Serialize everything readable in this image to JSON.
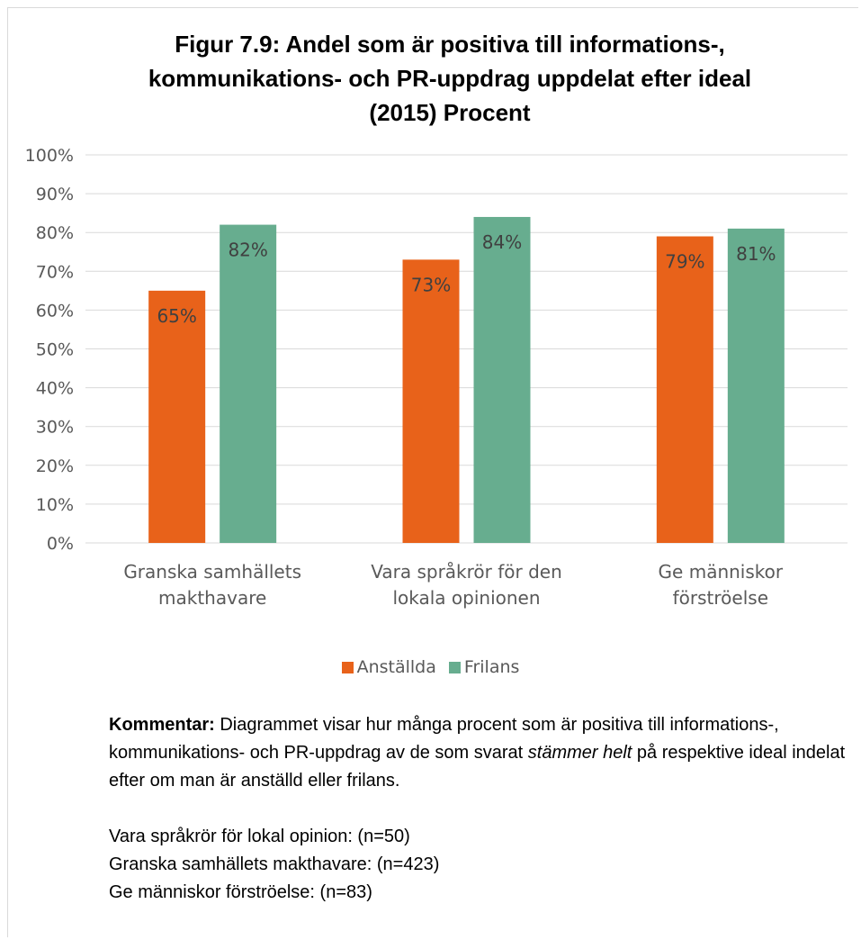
{
  "title_lines": [
    "Figur 7.9: Andel som är positiva till informations-,",
    "kommunikations- och PR-uppdrag uppdelat efter ideal",
    "(2015) Procent"
  ],
  "chart_data": {
    "type": "bar",
    "title": "Figur 7.9: Andel som är positiva till informations-, kommunikations- och PR-uppdrag uppdelat efter ideal (2015) Procent",
    "categories": [
      [
        "Granska samhällets",
        "makthavare"
      ],
      [
        "Vara språkrör för den",
        "lokala opinionen"
      ],
      [
        "Ge människor",
        "förströelse"
      ]
    ],
    "series": [
      {
        "name": "Anställda",
        "values": [
          65,
          73,
          79
        ],
        "labels": [
          "65%",
          "73%",
          "79%"
        ],
        "color": "#E8621A"
      },
      {
        "name": "Frilans",
        "values": [
          82,
          84,
          81
        ],
        "labels": [
          "82%",
          "84%",
          "81%"
        ],
        "color": "#67AD8F"
      }
    ],
    "ylim": [
      0,
      100
    ],
    "yticks": [
      0,
      10,
      20,
      30,
      40,
      50,
      60,
      70,
      80,
      90,
      100
    ],
    "ytick_labels": [
      "0%",
      "10%",
      "20%",
      "30%",
      "40%",
      "50%",
      "60%",
      "70%",
      "80%",
      "90%",
      "100%"
    ],
    "grid": true,
    "legend_position": "bottom",
    "gridline_color": "#d9d9d9"
  },
  "comment": {
    "label": "Kommentar:",
    "text_before": " Diagrammet visar hur många procent som är positiva till informations-, kommunikations- och PR-uppdrag av de som svarat ",
    "italic": "stämmer helt",
    "text_after": " på respektive ideal indelat efter om man är anställd eller frilans.",
    "notes": [
      "Vara språkrör för lokal opinion: (n=50)",
      "Granska samhällets makthavare: (n=423)",
      "Ge människor förströelse: (n=83)"
    ]
  }
}
